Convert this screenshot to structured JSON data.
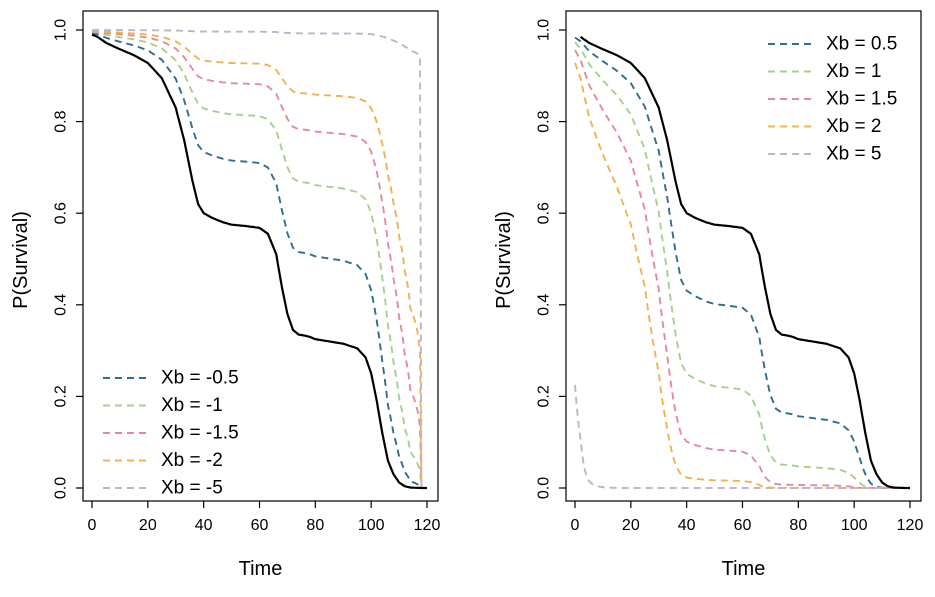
{
  "chart_data": [
    {
      "type": "line",
      "xlabel": "Time",
      "ylabel": "P(Survival)",
      "xlim": [
        0,
        120
      ],
      "ylim": [
        0,
        1
      ],
      "xticks": [
        "0",
        "20",
        "40",
        "60",
        "80",
        "100",
        "120"
      ],
      "yticks": [
        "0.0",
        "0.2",
        "0.4",
        "0.6",
        "0.8",
        "1.0"
      ],
      "legend_position": "bottom-left",
      "series": [
        {
          "name": "baseline",
          "style": "solid",
          "color": "#000000",
          "in_legend": false,
          "exponent": 1,
          "start": 0
        },
        {
          "name": "Xb = -0.5",
          "style": "dashed",
          "color": "#2E6E8E",
          "in_legend": true,
          "exponent": 0.6065,
          "start": 0
        },
        {
          "name": "Xb = -1",
          "style": "dashed",
          "color": "#A8D08D",
          "in_legend": true,
          "exponent": 0.3679,
          "start": 0
        },
        {
          "name": "Xb = -1.5",
          "style": "dashed",
          "color": "#E58A9C",
          "in_legend": true,
          "exponent": 0.2231,
          "start": 0
        },
        {
          "name": "Xb = -2",
          "style": "dashed",
          "color": "#F2B24E",
          "in_legend": true,
          "exponent": 0.1353,
          "start": 0
        },
        {
          "name": "Xb = -5",
          "style": "dashed",
          "color": "#C0B4CC",
          "in_legend": true,
          "exponent": 0.0067,
          "start": 0
        }
      ]
    },
    {
      "type": "line",
      "xlabel": "Time",
      "ylabel": "P(Survival)",
      "xlim": [
        0,
        120
      ],
      "ylim": [
        0,
        1
      ],
      "xticks": [
        "0",
        "20",
        "40",
        "60",
        "80",
        "100",
        "120"
      ],
      "yticks": [
        "0.0",
        "0.2",
        "0.4",
        "0.6",
        "0.8",
        "1.0"
      ],
      "legend_position": "top-right",
      "series": [
        {
          "name": "baseline",
          "style": "solid",
          "color": "#000000",
          "in_legend": false,
          "exponent": 1,
          "start": 2
        },
        {
          "name": "Xb = 0.5",
          "style": "dashed",
          "color": "#2E6E8E",
          "in_legend": true,
          "exponent": 1.6487,
          "start": 0
        },
        {
          "name": "Xb = 1",
          "style": "dashed",
          "color": "#A8D08D",
          "in_legend": true,
          "exponent": 2.7183,
          "start": 0
        },
        {
          "name": "Xb = 1.5",
          "style": "dashed",
          "color": "#E58A9C",
          "in_legend": true,
          "exponent": 4.4817,
          "start": 0
        },
        {
          "name": "Xb = 2",
          "style": "dashed",
          "color": "#F2B24E",
          "in_legend": true,
          "exponent": 7.3891,
          "start": 0
        },
        {
          "name": "Xb = 5",
          "style": "dashed",
          "color": "#C0B4CC",
          "in_legend": true,
          "exponent": 148.41,
          "start": 0
        }
      ]
    }
  ],
  "baseline_curve": {
    "t": [
      0,
      2,
      5,
      10,
      15,
      20,
      25,
      30,
      33,
      36,
      38,
      40,
      43,
      45,
      47,
      50,
      55,
      60,
      63,
      66,
      68,
      70,
      72,
      74,
      76,
      78,
      80,
      85,
      90,
      95,
      98,
      100,
      102,
      104,
      106,
      108,
      110,
      112,
      114,
      116,
      118,
      120
    ],
    "s": [
      0.99,
      0.985,
      0.972,
      0.958,
      0.945,
      0.928,
      0.895,
      0.83,
      0.76,
      0.67,
      0.62,
      0.6,
      0.59,
      0.585,
      0.58,
      0.575,
      0.572,
      0.568,
      0.555,
      0.51,
      0.44,
      0.38,
      0.345,
      0.335,
      0.333,
      0.33,
      0.325,
      0.32,
      0.315,
      0.305,
      0.285,
      0.25,
      0.19,
      0.12,
      0.06,
      0.03,
      0.012,
      0.004,
      0.001,
      0.0005,
      0.0,
      0.0
    ]
  }
}
